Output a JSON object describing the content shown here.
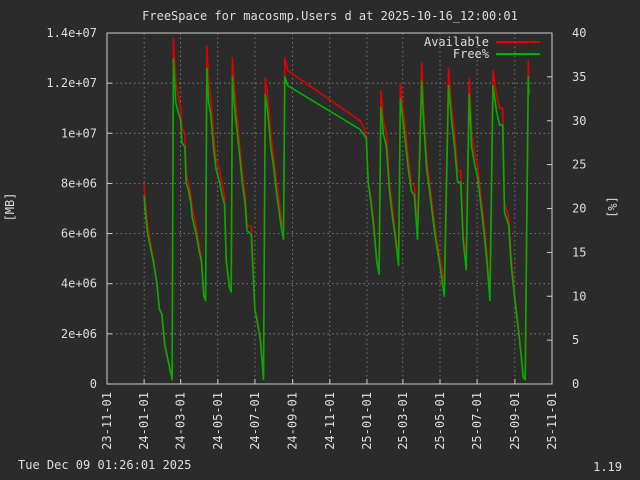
{
  "chart_data": {
    "type": "line",
    "title": "FreeSpace for macosmp.Users d at 2025-10-16_12:00:01",
    "ylabel": "[MB]",
    "y2label": "[%]",
    "ylim": [
      0,
      14000000
    ],
    "y2lim": [
      0,
      40
    ],
    "yticks": [
      "0",
      "2e+06",
      "4e+06",
      "6e+06",
      "8e+06",
      "1e+07",
      "1.2e+07",
      "1.4e+07"
    ],
    "y2ticks": [
      "0",
      "5",
      "10",
      "15",
      "20",
      "25",
      "30",
      "35",
      "40"
    ],
    "xticks": [
      "23-11-01",
      "24-01-01",
      "24-03-01",
      "24-05-01",
      "24-07-01",
      "24-09-01",
      "24-11-01",
      "25-01-01",
      "25-03-01",
      "25-05-01",
      "25-07-01",
      "25-09-01",
      "25-11-01"
    ],
    "grid": true,
    "legend_position": "top-right",
    "series": [
      {
        "name": "Available",
        "color": "#e00000",
        "axis": "y",
        "points": [
          [
            "2024-01-01",
            8000000
          ],
          [
            "2024-01-03",
            7200000
          ],
          [
            "2024-01-06",
            6500000
          ],
          [
            "2024-01-10",
            5800000
          ],
          [
            "2024-01-16",
            5000000
          ],
          [
            "2024-01-22",
            4000000
          ],
          [
            "2024-01-26",
            3000000
          ],
          [
            "2024-01-30",
            2800000
          ],
          [
            "2024-02-04",
            1500000
          ],
          [
            "2024-02-16",
            200000
          ],
          [
            "2024-02-18",
            13800000
          ],
          [
            "2024-02-22",
            12000000
          ],
          [
            "2024-03-01",
            11000000
          ],
          [
            "2024-03-03",
            10200000
          ],
          [
            "2024-03-08",
            10000000
          ],
          [
            "2024-03-10",
            8400000
          ],
          [
            "2024-03-14",
            8000000
          ],
          [
            "2024-03-18",
            7500000
          ],
          [
            "2024-03-20",
            7000000
          ],
          [
            "2024-03-25",
            6500000
          ],
          [
            "2024-03-28",
            6000000
          ],
          [
            "2024-04-01",
            5500000
          ],
          [
            "2024-04-04",
            5000000
          ],
          [
            "2024-04-08",
            3600000
          ],
          [
            "2024-04-11",
            3500000
          ],
          [
            "2024-04-13",
            13500000
          ],
          [
            "2024-04-16",
            12000000
          ],
          [
            "2024-04-19",
            11500000
          ],
          [
            "2024-04-24",
            10000000
          ],
          [
            "2024-04-28",
            9000000
          ],
          [
            "2024-05-04",
            8500000
          ],
          [
            "2024-05-08",
            8000000
          ],
          [
            "2024-05-12",
            7500000
          ],
          [
            "2024-05-15",
            5000000
          ],
          [
            "2024-05-20",
            4000000
          ],
          [
            "2024-05-23",
            3800000
          ],
          [
            "2024-05-25",
            13000000
          ],
          [
            "2024-05-28",
            12000000
          ],
          [
            "2024-06-02",
            10500000
          ],
          [
            "2024-06-06",
            9500000
          ],
          [
            "2024-06-10",
            8500000
          ],
          [
            "2024-06-15",
            7500000
          ],
          [
            "2024-06-18",
            6300000
          ],
          [
            "2024-06-25",
            6300000
          ],
          [
            "2024-07-01",
            3000000
          ],
          [
            "2024-07-05",
            2500000
          ],
          [
            "2024-07-10",
            1800000
          ],
          [
            "2024-07-15",
            300000
          ],
          [
            "2024-07-18",
            12200000
          ],
          [
            "2024-07-22",
            11500000
          ],
          [
            "2024-07-27",
            10000000
          ],
          [
            "2024-08-01",
            9000000
          ],
          [
            "2024-08-06",
            8000000
          ],
          [
            "2024-08-10",
            7200000
          ],
          [
            "2024-08-14",
            6500000
          ],
          [
            "2024-08-17",
            6200000
          ],
          [
            "2024-08-19",
            13000000
          ],
          [
            "2024-08-24",
            12500000
          ],
          [
            "2024-12-21",
            10500000
          ],
          [
            "2024-12-31",
            10000000
          ],
          [
            "2025-01-03",
            8000000
          ],
          [
            "2025-01-07",
            7500000
          ],
          [
            "2025-01-12",
            6500000
          ],
          [
            "2025-01-17",
            5000000
          ],
          [
            "2025-01-21",
            4700000
          ],
          [
            "2025-01-24",
            11700000
          ],
          [
            "2025-01-28",
            10500000
          ],
          [
            "2025-02-02",
            10000000
          ],
          [
            "2025-02-07",
            8000000
          ],
          [
            "2025-02-12",
            7000000
          ],
          [
            "2025-02-17",
            6000000
          ],
          [
            "2025-02-22",
            5000000
          ],
          [
            "2025-02-25",
            12000000
          ],
          [
            "2025-03-01",
            11000000
          ],
          [
            "2025-03-06",
            10000000
          ],
          [
            "2025-03-10",
            9000000
          ],
          [
            "2025-03-15",
            8000000
          ],
          [
            "2025-03-20",
            7900000
          ],
          [
            "2025-03-25",
            6200000
          ],
          [
            "2025-04-01",
            12800000
          ],
          [
            "2025-04-04",
            11000000
          ],
          [
            "2025-04-09",
            9000000
          ],
          [
            "2025-04-14",
            8000000
          ],
          [
            "2025-04-19",
            7000000
          ],
          [
            "2025-04-24",
            6000000
          ],
          [
            "2025-05-01",
            5000000
          ],
          [
            "2025-05-08",
            4000000
          ],
          [
            "2025-05-15",
            12600000
          ],
          [
            "2025-05-20",
            11000000
          ],
          [
            "2025-05-25",
            10000000
          ],
          [
            "2025-05-30",
            8500000
          ],
          [
            "2025-06-04",
            8500000
          ],
          [
            "2025-06-08",
            6000000
          ],
          [
            "2025-06-13",
            5000000
          ],
          [
            "2025-06-18",
            12200000
          ],
          [
            "2025-06-22",
            10000000
          ],
          [
            "2025-06-27",
            9200000
          ],
          [
            "2025-07-02",
            8700000
          ],
          [
            "2025-07-07",
            7500000
          ],
          [
            "2025-07-12",
            6500000
          ],
          [
            "2025-07-17",
            5200000
          ],
          [
            "2025-07-22",
            3600000
          ],
          [
            "2025-07-27",
            12500000
          ],
          [
            "2025-08-02",
            11500000
          ],
          [
            "2025-08-07",
            11000000
          ],
          [
            "2025-08-12",
            11000000
          ],
          [
            "2025-08-15",
            7200000
          ],
          [
            "2025-08-18",
            7000000
          ],
          [
            "2025-08-22",
            6600000
          ],
          [
            "2025-08-26",
            5000000
          ],
          [
            "2025-09-01",
            3500000
          ],
          [
            "2025-09-08",
            2000000
          ],
          [
            "2025-09-15",
            300000
          ],
          [
            "2025-09-18",
            200000
          ],
          [
            "2025-09-23",
            12900000
          ],
          [
            "2025-09-24",
            12200000
          ]
        ]
      },
      {
        "name": "Free%",
        "color": "#00b000",
        "axis": "y2",
        "points": [
          [
            "2024-01-01",
            21.5
          ],
          [
            "2024-01-03",
            19.5
          ],
          [
            "2024-01-06",
            17.5
          ],
          [
            "2024-01-10",
            16.0
          ],
          [
            "2024-01-16",
            14.0
          ],
          [
            "2024-01-22",
            11.5
          ],
          [
            "2024-01-26",
            8.5
          ],
          [
            "2024-01-30",
            8.0
          ],
          [
            "2024-02-04",
            4.5
          ],
          [
            "2024-02-16",
            0.5
          ],
          [
            "2024-02-18",
            37.0
          ],
          [
            "2024-02-22",
            32.0
          ],
          [
            "2024-03-01",
            30.0
          ],
          [
            "2024-03-03",
            27.5
          ],
          [
            "2024-03-08",
            27.0
          ],
          [
            "2024-03-10",
            23.0
          ],
          [
            "2024-03-14",
            22.0
          ],
          [
            "2024-03-18",
            20.5
          ],
          [
            "2024-03-20",
            19.0
          ],
          [
            "2024-03-25",
            17.5
          ],
          [
            "2024-03-28",
            16.5
          ],
          [
            "2024-04-01",
            15.0
          ],
          [
            "2024-04-04",
            14.0
          ],
          [
            "2024-04-08",
            10.0
          ],
          [
            "2024-04-11",
            9.5
          ],
          [
            "2024-04-13",
            36.0
          ],
          [
            "2024-04-16",
            32.0
          ],
          [
            "2024-04-19",
            31.0
          ],
          [
            "2024-04-24",
            27.0
          ],
          [
            "2024-04-28",
            24.5
          ],
          [
            "2024-05-04",
            23.0
          ],
          [
            "2024-05-08",
            21.5
          ],
          [
            "2024-05-12",
            20.5
          ],
          [
            "2024-05-15",
            14.0
          ],
          [
            "2024-05-20",
            11.0
          ],
          [
            "2024-05-23",
            10.5
          ],
          [
            "2024-05-25",
            35.0
          ],
          [
            "2024-05-28",
            32.0
          ],
          [
            "2024-06-02",
            28.5
          ],
          [
            "2024-06-06",
            26.0
          ],
          [
            "2024-06-10",
            23.0
          ],
          [
            "2024-06-15",
            20.5
          ],
          [
            "2024-06-18",
            17.5
          ],
          [
            "2024-06-25",
            17.0
          ],
          [
            "2024-07-01",
            8.5
          ],
          [
            "2024-07-05",
            7.0
          ],
          [
            "2024-07-10",
            5.0
          ],
          [
            "2024-07-15",
            0.5
          ],
          [
            "2024-07-18",
            33.0
          ],
          [
            "2024-07-22",
            31.0
          ],
          [
            "2024-07-27",
            27.0
          ],
          [
            "2024-08-01",
            24.5
          ],
          [
            "2024-08-06",
            21.5
          ],
          [
            "2024-08-10",
            19.5
          ],
          [
            "2024-08-14",
            17.5
          ],
          [
            "2024-08-17",
            16.5
          ],
          [
            "2024-08-19",
            35.0
          ],
          [
            "2024-08-24",
            34.0
          ],
          [
            "2024-12-21",
            29.0
          ],
          [
            "2024-12-31",
            28.0
          ],
          [
            "2025-01-03",
            23.0
          ],
          [
            "2025-01-07",
            21.0
          ],
          [
            "2025-01-12",
            18.0
          ],
          [
            "2025-01-17",
            14.0
          ],
          [
            "2025-01-21",
            12.5
          ],
          [
            "2025-01-24",
            31.5
          ],
          [
            "2025-01-28",
            28.5
          ],
          [
            "2025-02-02",
            27.0
          ],
          [
            "2025-02-07",
            22.0
          ],
          [
            "2025-02-12",
            19.0
          ],
          [
            "2025-02-17",
            16.5
          ],
          [
            "2025-02-22",
            13.5
          ],
          [
            "2025-02-25",
            32.5
          ],
          [
            "2025-03-01",
            30.0
          ],
          [
            "2025-03-06",
            27.0
          ],
          [
            "2025-03-10",
            24.5
          ],
          [
            "2025-03-15",
            22.0
          ],
          [
            "2025-03-20",
            21.5
          ],
          [
            "2025-03-25",
            16.5
          ],
          [
            "2025-04-01",
            34.5
          ],
          [
            "2025-04-04",
            30.0
          ],
          [
            "2025-04-09",
            24.5
          ],
          [
            "2025-04-14",
            22.0
          ],
          [
            "2025-04-19",
            19.0
          ],
          [
            "2025-04-24",
            16.5
          ],
          [
            "2025-05-01",
            13.5
          ],
          [
            "2025-05-08",
            10.0
          ],
          [
            "2025-05-15",
            34.0
          ],
          [
            "2025-05-20",
            30.0
          ],
          [
            "2025-05-25",
            27.0
          ],
          [
            "2025-05-30",
            23.0
          ],
          [
            "2025-06-04",
            23.0
          ],
          [
            "2025-06-08",
            16.5
          ],
          [
            "2025-06-13",
            13.0
          ],
          [
            "2025-06-18",
            33.0
          ],
          [
            "2025-06-22",
            27.0
          ],
          [
            "2025-06-27",
            25.0
          ],
          [
            "2025-07-02",
            23.5
          ],
          [
            "2025-07-07",
            20.5
          ],
          [
            "2025-07-12",
            17.5
          ],
          [
            "2025-07-17",
            14.0
          ],
          [
            "2025-07-22",
            9.5
          ],
          [
            "2025-07-27",
            34.0
          ],
          [
            "2025-08-02",
            31.0
          ],
          [
            "2025-08-07",
            29.5
          ],
          [
            "2025-08-12",
            29.5
          ],
          [
            "2025-08-15",
            19.5
          ],
          [
            "2025-08-18",
            19.0
          ],
          [
            "2025-08-22",
            18.0
          ],
          [
            "2025-08-26",
            13.5
          ],
          [
            "2025-09-01",
            9.5
          ],
          [
            "2025-09-08",
            5.5
          ],
          [
            "2025-09-15",
            0.7
          ],
          [
            "2025-09-18",
            0.5
          ],
          [
            "2025-09-23",
            35.0
          ],
          [
            "2025-09-24",
            33.0
          ]
        ]
      }
    ]
  },
  "footer": {
    "timestamp": "Tue Dec 09 01:26:01 2025",
    "version": "1.19"
  },
  "colors": {
    "background": "#2b2b2b",
    "grid": "#9a9a9a",
    "text": "#dddddd"
  }
}
